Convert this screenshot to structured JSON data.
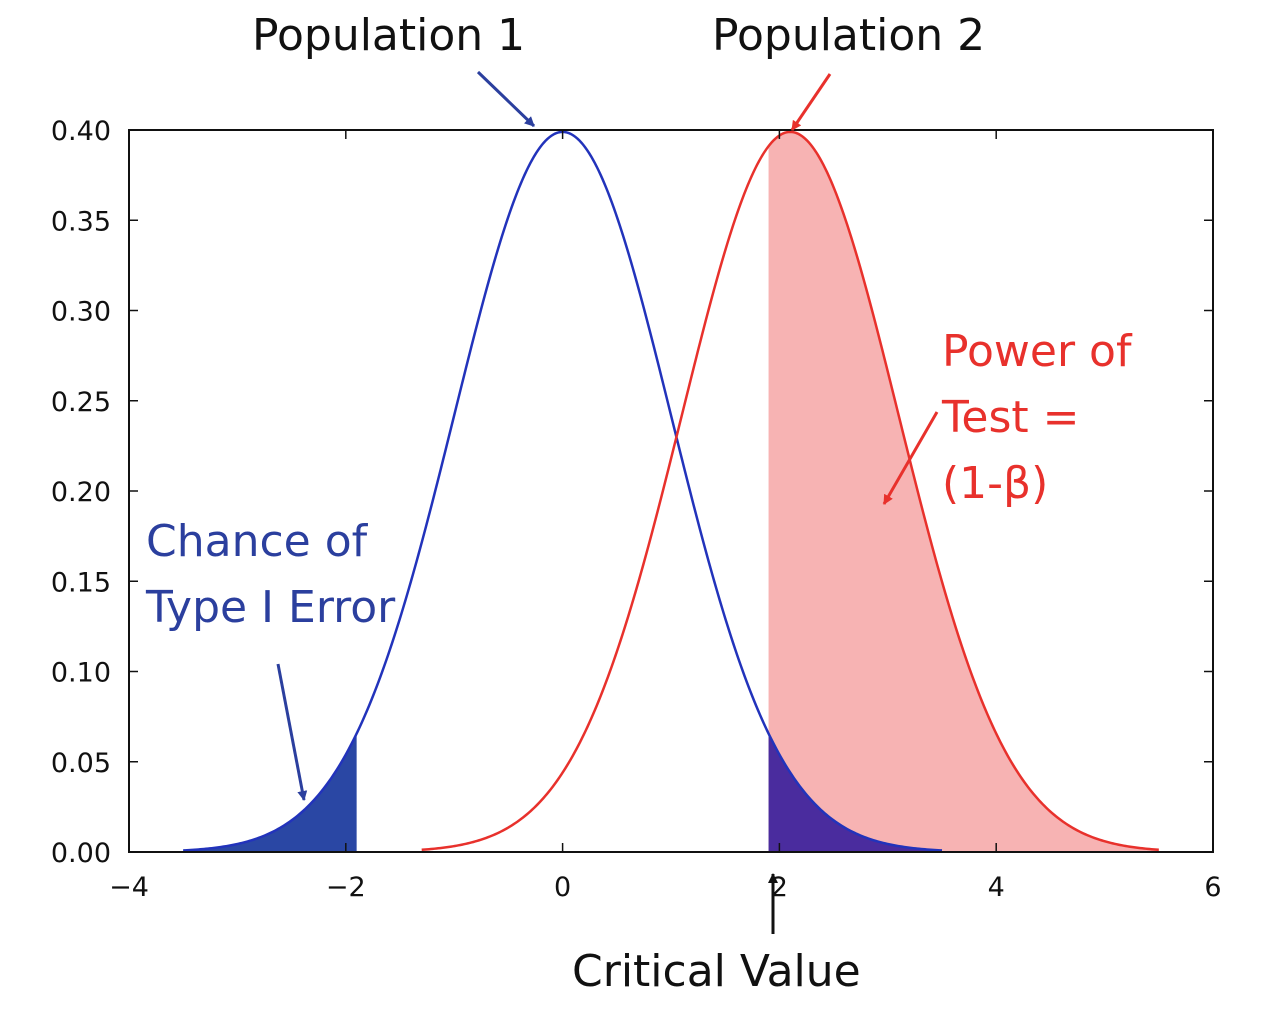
{
  "chart_data": {
    "type": "line",
    "title": "",
    "xlabel": "",
    "ylabel": "",
    "xlim": [
      -4,
      6
    ],
    "ylim": [
      0,
      0.4
    ],
    "xticks": [
      -4,
      -2,
      0,
      2,
      4,
      6
    ],
    "xtick_labels": [
      "−4",
      "−2",
      "0",
      "2",
      "4",
      "6"
    ],
    "yticks": [
      0,
      0.05,
      0.1,
      0.15,
      0.2,
      0.25,
      0.3,
      0.35,
      0.4
    ],
    "ytick_labels": [
      "0.00",
      "0.05",
      "0.10",
      "0.15",
      "0.20",
      "0.25",
      "0.30",
      "0.35",
      "0.40"
    ],
    "grid": false,
    "critical_value": 1.9,
    "series": [
      {
        "distribution": "normal",
        "mean": 0,
        "sd": 1,
        "x_range": [
          -3.5,
          3.5
        ],
        "color": "#2233bb"
      },
      {
        "distribution": "normal",
        "mean": 2.1,
        "sd": 1,
        "x_range": [
          -1.3,
          5.5
        ],
        "color": "#e8312c"
      }
    ],
    "shaded_regions": [
      {
        "series": 0,
        "from": -3.5,
        "to": -1.9,
        "color": "#2a47a4"
      },
      {
        "series": 1,
        "from": 1.9,
        "to": 5.5,
        "color": "#f7b3b3"
      },
      {
        "series": 0,
        "from": 1.9,
        "to": 3.5,
        "color": "#4a2c9e"
      }
    ],
    "annotations": {
      "pop1": "Population 1",
      "pop2": "Population 2",
      "type1_line1": "Chance of",
      "type1_line2": "Type I Error",
      "power_line1": "Power of",
      "power_line2": "Test =",
      "power_line3": "(1-β)",
      "critical": "Critical Value"
    },
    "colors": {
      "blue": "#2233bb",
      "red": "#e8312c",
      "arrow_blue": "#2b3f9e",
      "arrow_red": "#e8312c",
      "arrow_black": "#111111"
    }
  }
}
